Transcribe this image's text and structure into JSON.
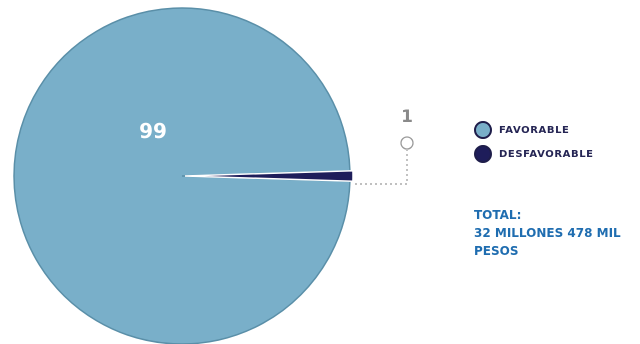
{
  "chart_data": {
    "type": "pie",
    "slices": [
      {
        "label": "FAVORABLE",
        "value": 99,
        "color": "#79afc9"
      },
      {
        "label": "DESFAVORABLE",
        "value": 1,
        "color": "#1e1d5a"
      }
    ],
    "data_labels": [
      "99",
      "1"
    ]
  },
  "total": {
    "title": "TOTAL:",
    "line1": "32 MILLONES 478 MIL",
    "line2": "PESOS"
  }
}
